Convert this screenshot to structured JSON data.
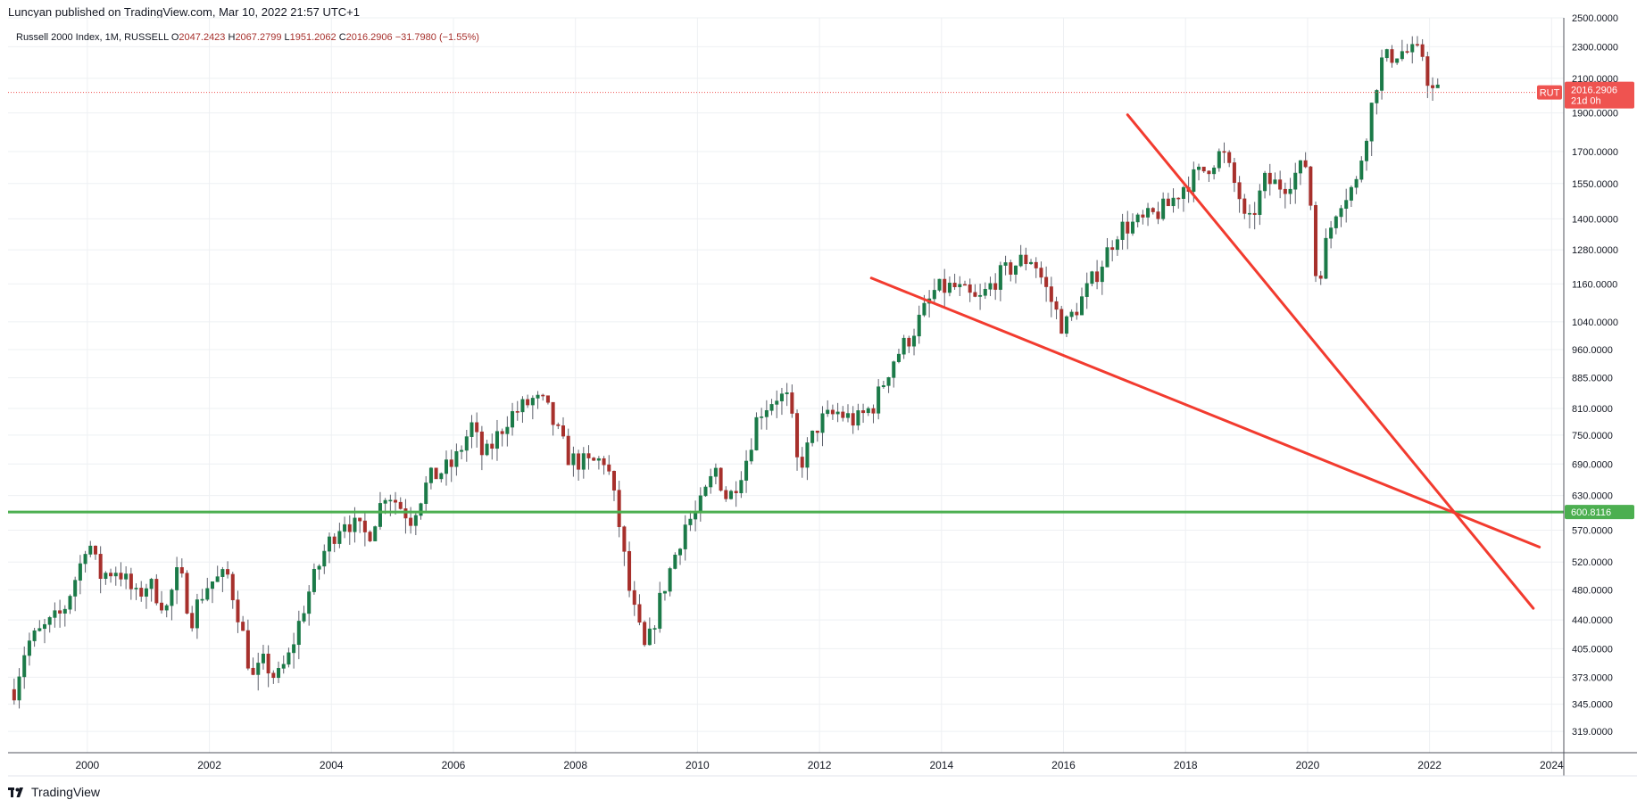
{
  "header": {
    "publisher": "Luncyan published on TradingView.com, Mar 10, 2022 21:57 UTC+1"
  },
  "legend": {
    "symbol": "Russell 2000 Index, 1M, RUSSELL",
    "open_label": "O",
    "open": "2047.2423",
    "high_label": "H",
    "high": "2067.2799",
    "low_label": "L",
    "low": "1951.2062",
    "close_label": "C",
    "close": "2016.2906",
    "change": "−31.7980 (−1.55%)"
  },
  "footer": {
    "brand": "TradingView"
  },
  "colors": {
    "up": "#26a69a",
    "up_dark": "#1b7a48",
    "down": "#a7302c",
    "wick": "#5d606b",
    "grid": "#eef0f3",
    "trend": "#f23b2f",
    "support": "#4caf50",
    "price_tag": "#ef5350"
  },
  "chart_data": {
    "type": "candlestick",
    "y_scale": "log",
    "ylim": [
      300,
      2500
    ],
    "xlim": [
      1998.7,
      2024.2
    ],
    "y_ticks": [
      "319.0000",
      "345.0000",
      "373.0000",
      "405.0000",
      "440.0000",
      "480.0000",
      "520.0000",
      "570.0000",
      "630.0000",
      "690.0000",
      "750.0000",
      "810.0000",
      "885.0000",
      "960.0000",
      "1040.0000",
      "1160.0000",
      "1280.0000",
      "1400.0000",
      "1550.0000",
      "1700.0000",
      "1900.0000",
      "2100.0000",
      "2300.0000",
      "2500.0000"
    ],
    "x_ticks": [
      "2000",
      "2002",
      "2004",
      "2006",
      "2008",
      "2010",
      "2012",
      "2014",
      "2016",
      "2018",
      "2020",
      "2022",
      "2024"
    ],
    "price_tag": {
      "symbol": "RUT",
      "value": "2016.2906",
      "countdown": "21d 0h"
    },
    "support_tag": {
      "value": "600.8116"
    },
    "horizontal_line": {
      "price": 600.81
    },
    "trend_lines": [
      {
        "x1": 2012.85,
        "y1": 1180,
        "x2": 2023.8,
        "y2": 543
      },
      {
        "x1": 2017.05,
        "y1": 1890,
        "x2": 2023.7,
        "y2": 455
      }
    ],
    "anchors": [
      [
        1998.8,
        360
      ],
      [
        1999.0,
        410
      ],
      [
        1999.6,
        450
      ],
      [
        1999.9,
        520
      ],
      [
        2000.0,
        560
      ],
      [
        2000.2,
        500
      ],
      [
        2000.5,
        510
      ],
      [
        2000.8,
        470
      ],
      [
        2001.0,
        490
      ],
      [
        2001.3,
        455
      ],
      [
        2001.5,
        510
      ],
      [
        2001.7,
        440
      ],
      [
        2001.85,
        470
      ],
      [
        2002.0,
        490
      ],
      [
        2002.3,
        500
      ],
      [
        2002.5,
        440
      ],
      [
        2002.7,
        370
      ],
      [
        2002.9,
        390
      ],
      [
        2003.1,
        370
      ],
      [
        2003.3,
        395
      ],
      [
        2003.6,
        470
      ],
      [
        2003.9,
        540
      ],
      [
        2004.2,
        590
      ],
      [
        2004.6,
        560
      ],
      [
        2004.9,
        640
      ],
      [
        2005.3,
        590
      ],
      [
        2005.6,
        660
      ],
      [
        2006.0,
        690
      ],
      [
        2006.3,
        770
      ],
      [
        2006.5,
        700
      ],
      [
        2006.9,
        790
      ],
      [
        2007.3,
        830
      ],
      [
        2007.5,
        820
      ],
      [
        2007.9,
        700
      ],
      [
        2008.2,
        690
      ],
      [
        2008.5,
        700
      ],
      [
        2008.7,
        590
      ],
      [
        2008.9,
        470
      ],
      [
        2009.15,
        400
      ],
      [
        2009.4,
        470
      ],
      [
        2009.8,
        580
      ],
      [
        2010.0,
        600
      ],
      [
        2010.3,
        680
      ],
      [
        2010.5,
        620
      ],
      [
        2010.8,
        700
      ],
      [
        2011.0,
        800
      ],
      [
        2011.3,
        840
      ],
      [
        2011.5,
        830
      ],
      [
        2011.65,
        680
      ],
      [
        2011.8,
        720
      ],
      [
        2012.0,
        780
      ],
      [
        2012.3,
        800
      ],
      [
        2012.6,
        780
      ],
      [
        2012.9,
        820
      ],
      [
        2013.2,
        930
      ],
      [
        2013.5,
        1000
      ],
      [
        2013.9,
        1140
      ],
      [
        2014.2,
        1150
      ],
      [
        2014.6,
        1100
      ],
      [
        2014.9,
        1180
      ],
      [
        2015.3,
        1240
      ],
      [
        2015.5,
        1250
      ],
      [
        2015.7,
        1150
      ],
      [
        2016.0,
        1020
      ],
      [
        2016.3,
        1110
      ],
      [
        2016.6,
        1220
      ],
      [
        2016.9,
        1360
      ],
      [
        2017.3,
        1390
      ],
      [
        2017.7,
        1450
      ],
      [
        2018.0,
        1550
      ],
      [
        2018.3,
        1610
      ],
      [
        2018.6,
        1700
      ],
      [
        2018.9,
        1480
      ],
      [
        2019.0,
        1350
      ],
      [
        2019.3,
        1560
      ],
      [
        2019.6,
        1540
      ],
      [
        2019.9,
        1620
      ],
      [
        2020.0,
        1650
      ],
      [
        2020.15,
        1150
      ],
      [
        2020.3,
        1300
      ],
      [
        2020.5,
        1470
      ],
      [
        2020.8,
        1550
      ],
      [
        2020.95,
        1780
      ],
      [
        2021.2,
        2200
      ],
      [
        2021.5,
        2270
      ],
      [
        2021.9,
        2250
      ],
      [
        2022.0,
        2030
      ],
      [
        2022.15,
        2016
      ]
    ]
  }
}
